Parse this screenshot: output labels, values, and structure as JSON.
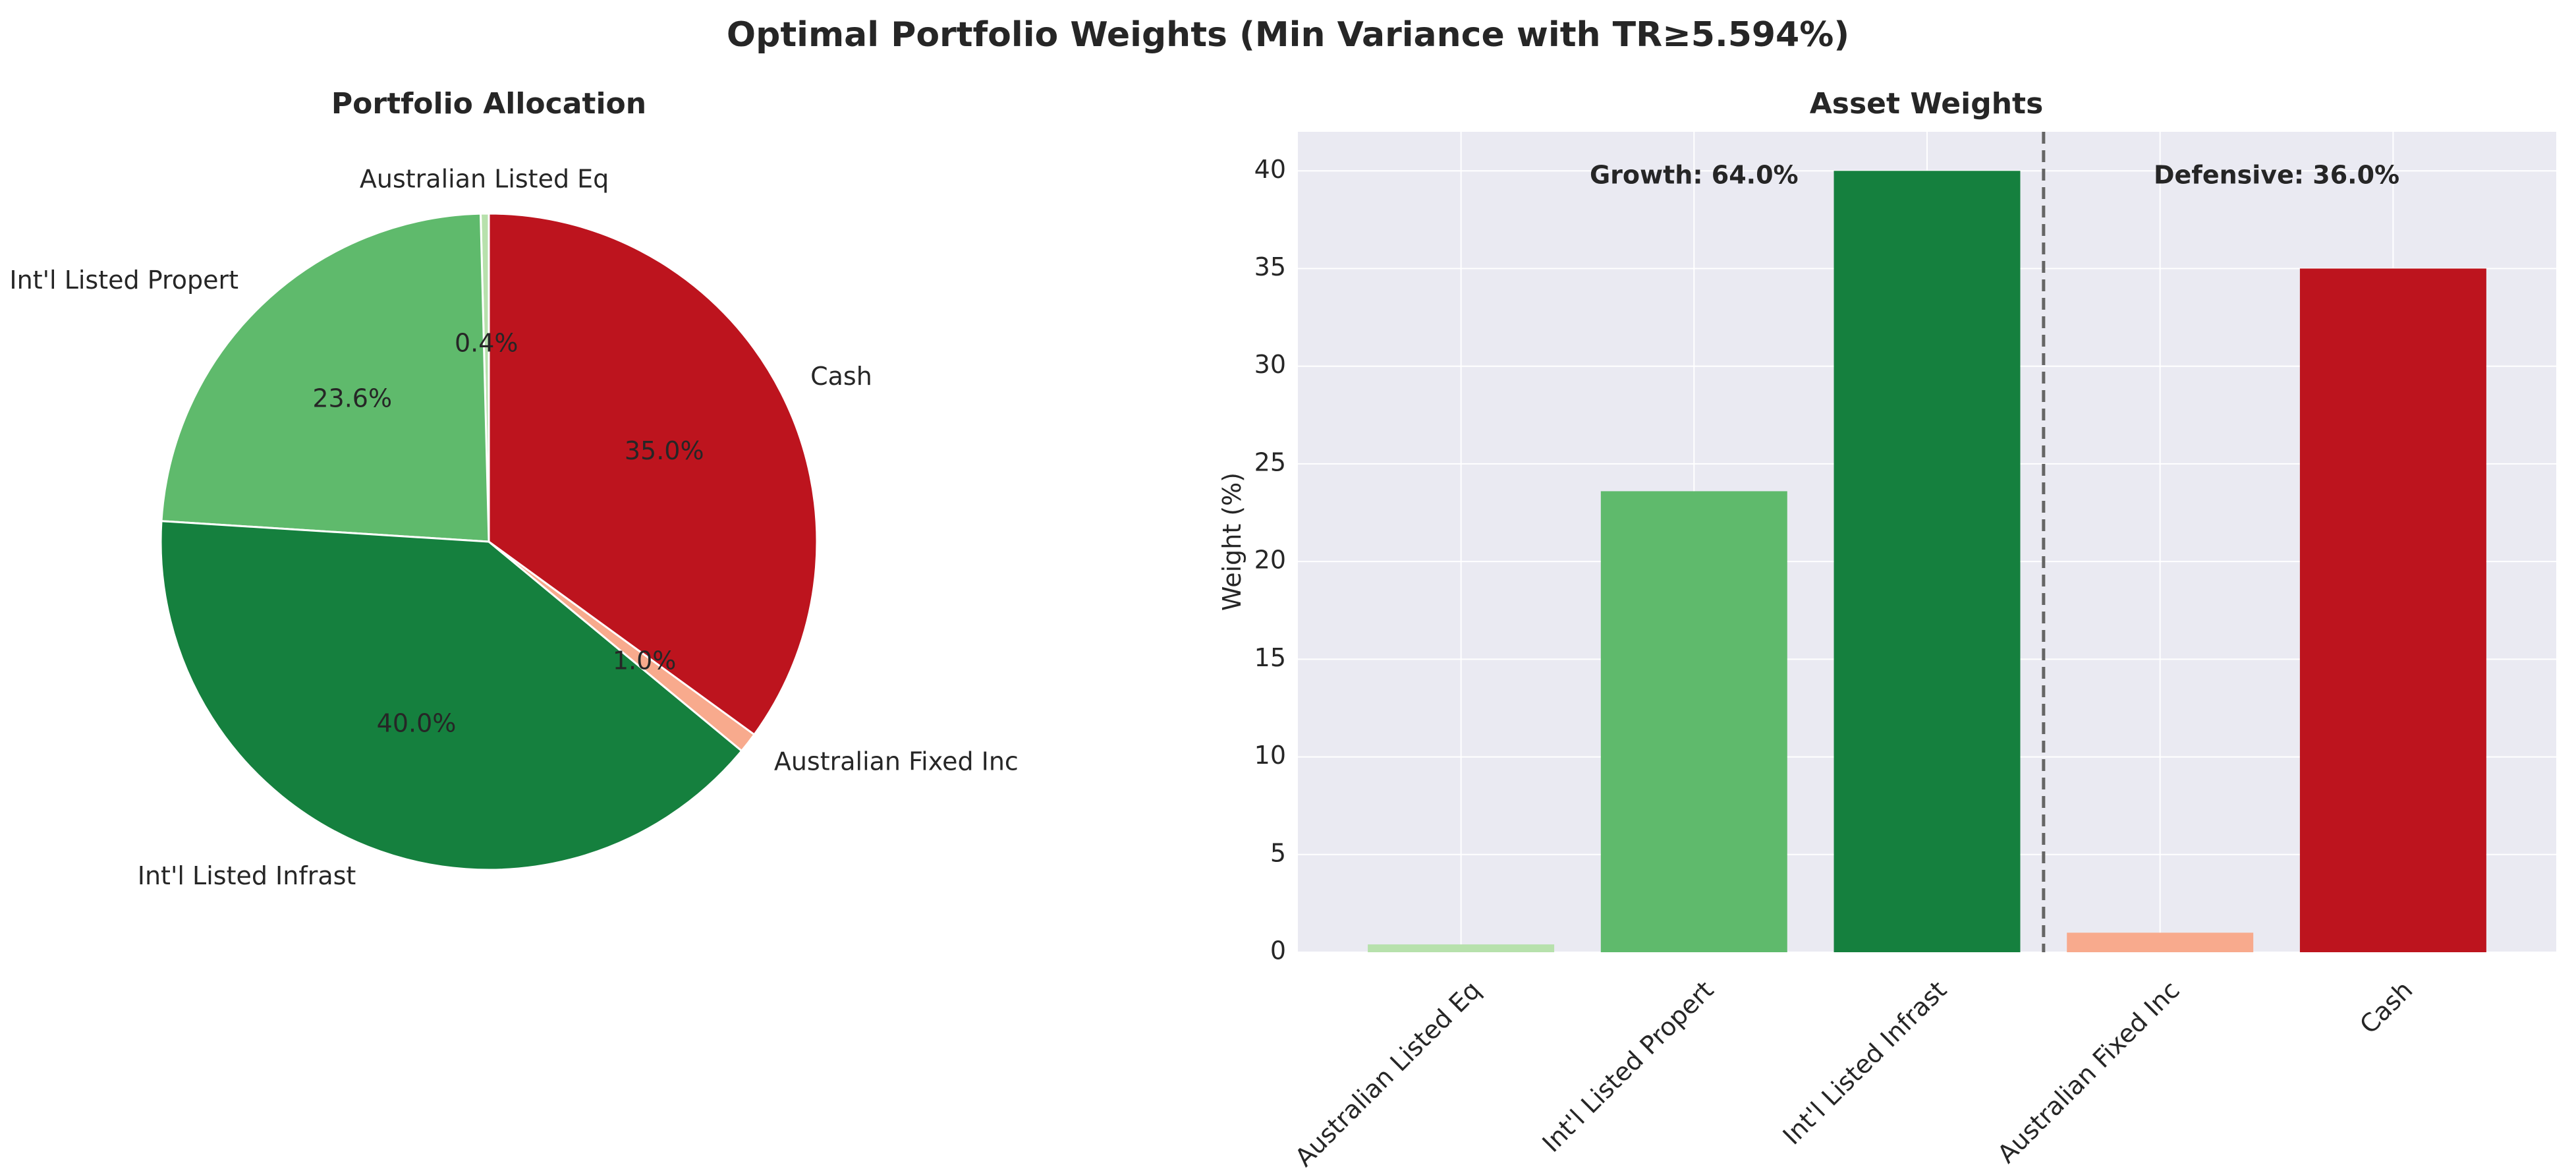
{
  "figure": {
    "title": "Optimal Portfolio Weights (Min Variance with TR≥5.594%)"
  },
  "chart_data": [
    {
      "type": "pie",
      "title": "Portfolio Allocation",
      "categories": [
        "Australian Listed Eq",
        "Int'l Listed Propert",
        "Int'l Listed Infrast",
        "Australian Fixed Inc",
        "Cash"
      ],
      "values": [
        0.4,
        23.6,
        40.0,
        1.0,
        35.0
      ],
      "autopct_labels": [
        "0.4%",
        "23.6%",
        "40.0%",
        "1.0%",
        "35.0%"
      ],
      "colors": [
        "#b7e1ac",
        "#5fba6c",
        "#15803e",
        "#f8aa8d",
        "#bd141e"
      ],
      "start_angle": 90,
      "direction": "counterclockwise"
    },
    {
      "type": "bar",
      "title": "Asset Weights",
      "categories": [
        "Australian Listed Eq",
        "Int'l Listed Propert",
        "Int'l Listed Infrast",
        "Australian Fixed Inc",
        "Cash"
      ],
      "values": [
        0.4,
        23.6,
        40.0,
        1.0,
        35.0
      ],
      "colors": [
        "#b7e1ac",
        "#5fba6c",
        "#15803e",
        "#f8aa8d",
        "#bd141e"
      ],
      "xlabel": "",
      "ylabel": "Weight (%)",
      "ylim": [
        0,
        42
      ],
      "yticks": [
        0,
        5,
        10,
        15,
        20,
        25,
        30,
        35,
        40
      ],
      "grid": true,
      "divider_after_category": 2,
      "annotations": [
        {
          "text": "Growth: 64.0%",
          "category": 1,
          "y": 40.3
        },
        {
          "text": "Defensive: 36.0%",
          "category": 3.5,
          "y": 40.3
        }
      ],
      "panel_color": "#eaeaf2",
      "grid_color": "#ffffff",
      "divider_color": "#666666"
    }
  ]
}
